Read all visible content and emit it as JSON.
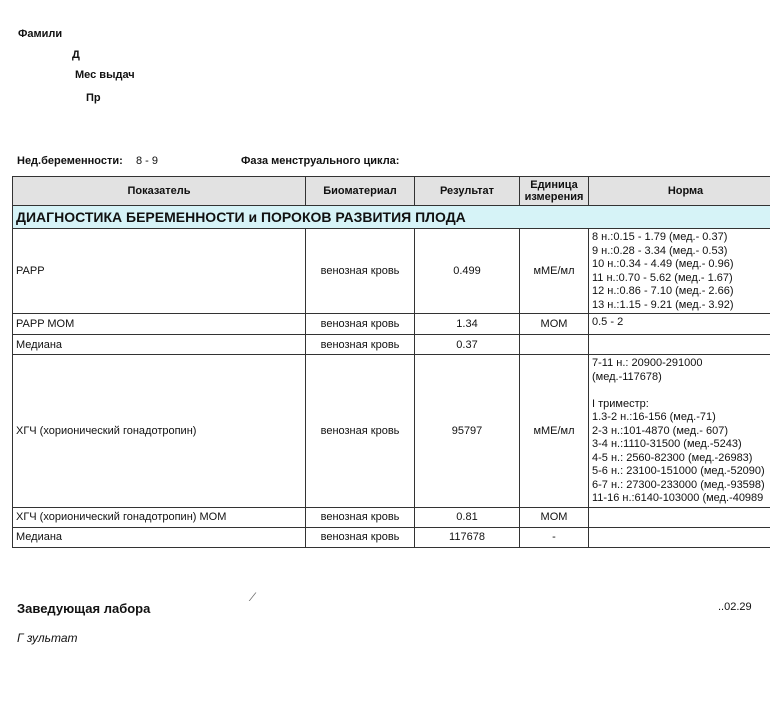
{
  "header": {
    "surname_label": "Фамили",
    "dob_label": "Д",
    "issue_place_label": "Мес  выдач",
    "pr_label": "Пр",
    "pregnancy_week_label": "Нед.беременности:",
    "pregnancy_week_value": "8 - 9",
    "cycle_phase_label": "Фаза менструального цикла:"
  },
  "table": {
    "columns": [
      "Показатель",
      "Биоматериал",
      "Результат",
      "Единица измерения",
      "Норма"
    ],
    "section": "ДИАГНОСТИКА БЕРЕМЕННОСТИ и ПОРОКОВ РАЗВИТИЯ ПЛОДА",
    "rows": [
      {
        "name": "PAPP",
        "material": "венозная кровь",
        "result": "0.499",
        "unit": "мМЕ/мл",
        "norm": [
          "8 н.:0.15 - 1.79 (мед.- 0.37)",
          "9 н.:0.28 - 3.34 (мед.- 0.53)",
          "10 н.:0.34 - 4.49 (мед.- 0.96)",
          "11 н.:0.70 - 5.62 (мед.- 1.67)",
          "12 н.:0.86 - 7.10 (мед.- 2.66)",
          "13 н.:1.15 - 9.21 (мед.- 3.92)"
        ]
      },
      {
        "name": "PAPP MOM",
        "material": "венозная кровь",
        "result": "1.34",
        "unit": "MOM",
        "norm": [
          "0.5 - 2"
        ]
      },
      {
        "name": "Медиана",
        "material": "венозная кровь",
        "result": "0.37",
        "unit": "",
        "norm": []
      },
      {
        "name": "ХГЧ (хорионический гонадотропин)",
        "material": "венозная кровь",
        "result": "95797",
        "unit": "мМЕ/мл",
        "norm": [
          "7-11 н.: 20900-291000",
          "(мед.-117678)",
          "",
          "I триместр:",
          "1.3-2 н.:16-156 (мед.-71)",
          "2-3 н.:101-4870 (мед.- 607)",
          "3-4 н.:1110-31500 (мед.-5243)",
          "4-5 н.: 2560-82300 (мед.-26983)",
          "5-6 н.: 23100-151000 (мед.-52090)",
          "6-7 н.: 27300-233000 (мед.-93598)",
          "11-16 н.:6140-103000 (мед.-40989"
        ]
      },
      {
        "name": "ХГЧ (хорионический гонадотропин) MOM",
        "material": "венозная кровь",
        "result": "0.81",
        "unit": "MOM",
        "norm": []
      },
      {
        "name": "Медиана",
        "material": "венозная кровь",
        "result": "117678",
        "unit": "-",
        "norm": []
      }
    ]
  },
  "footer": {
    "head_label": "Заведующая лабора",
    "date_fragment": "..02.29",
    "result_note": "Г         зультат"
  }
}
